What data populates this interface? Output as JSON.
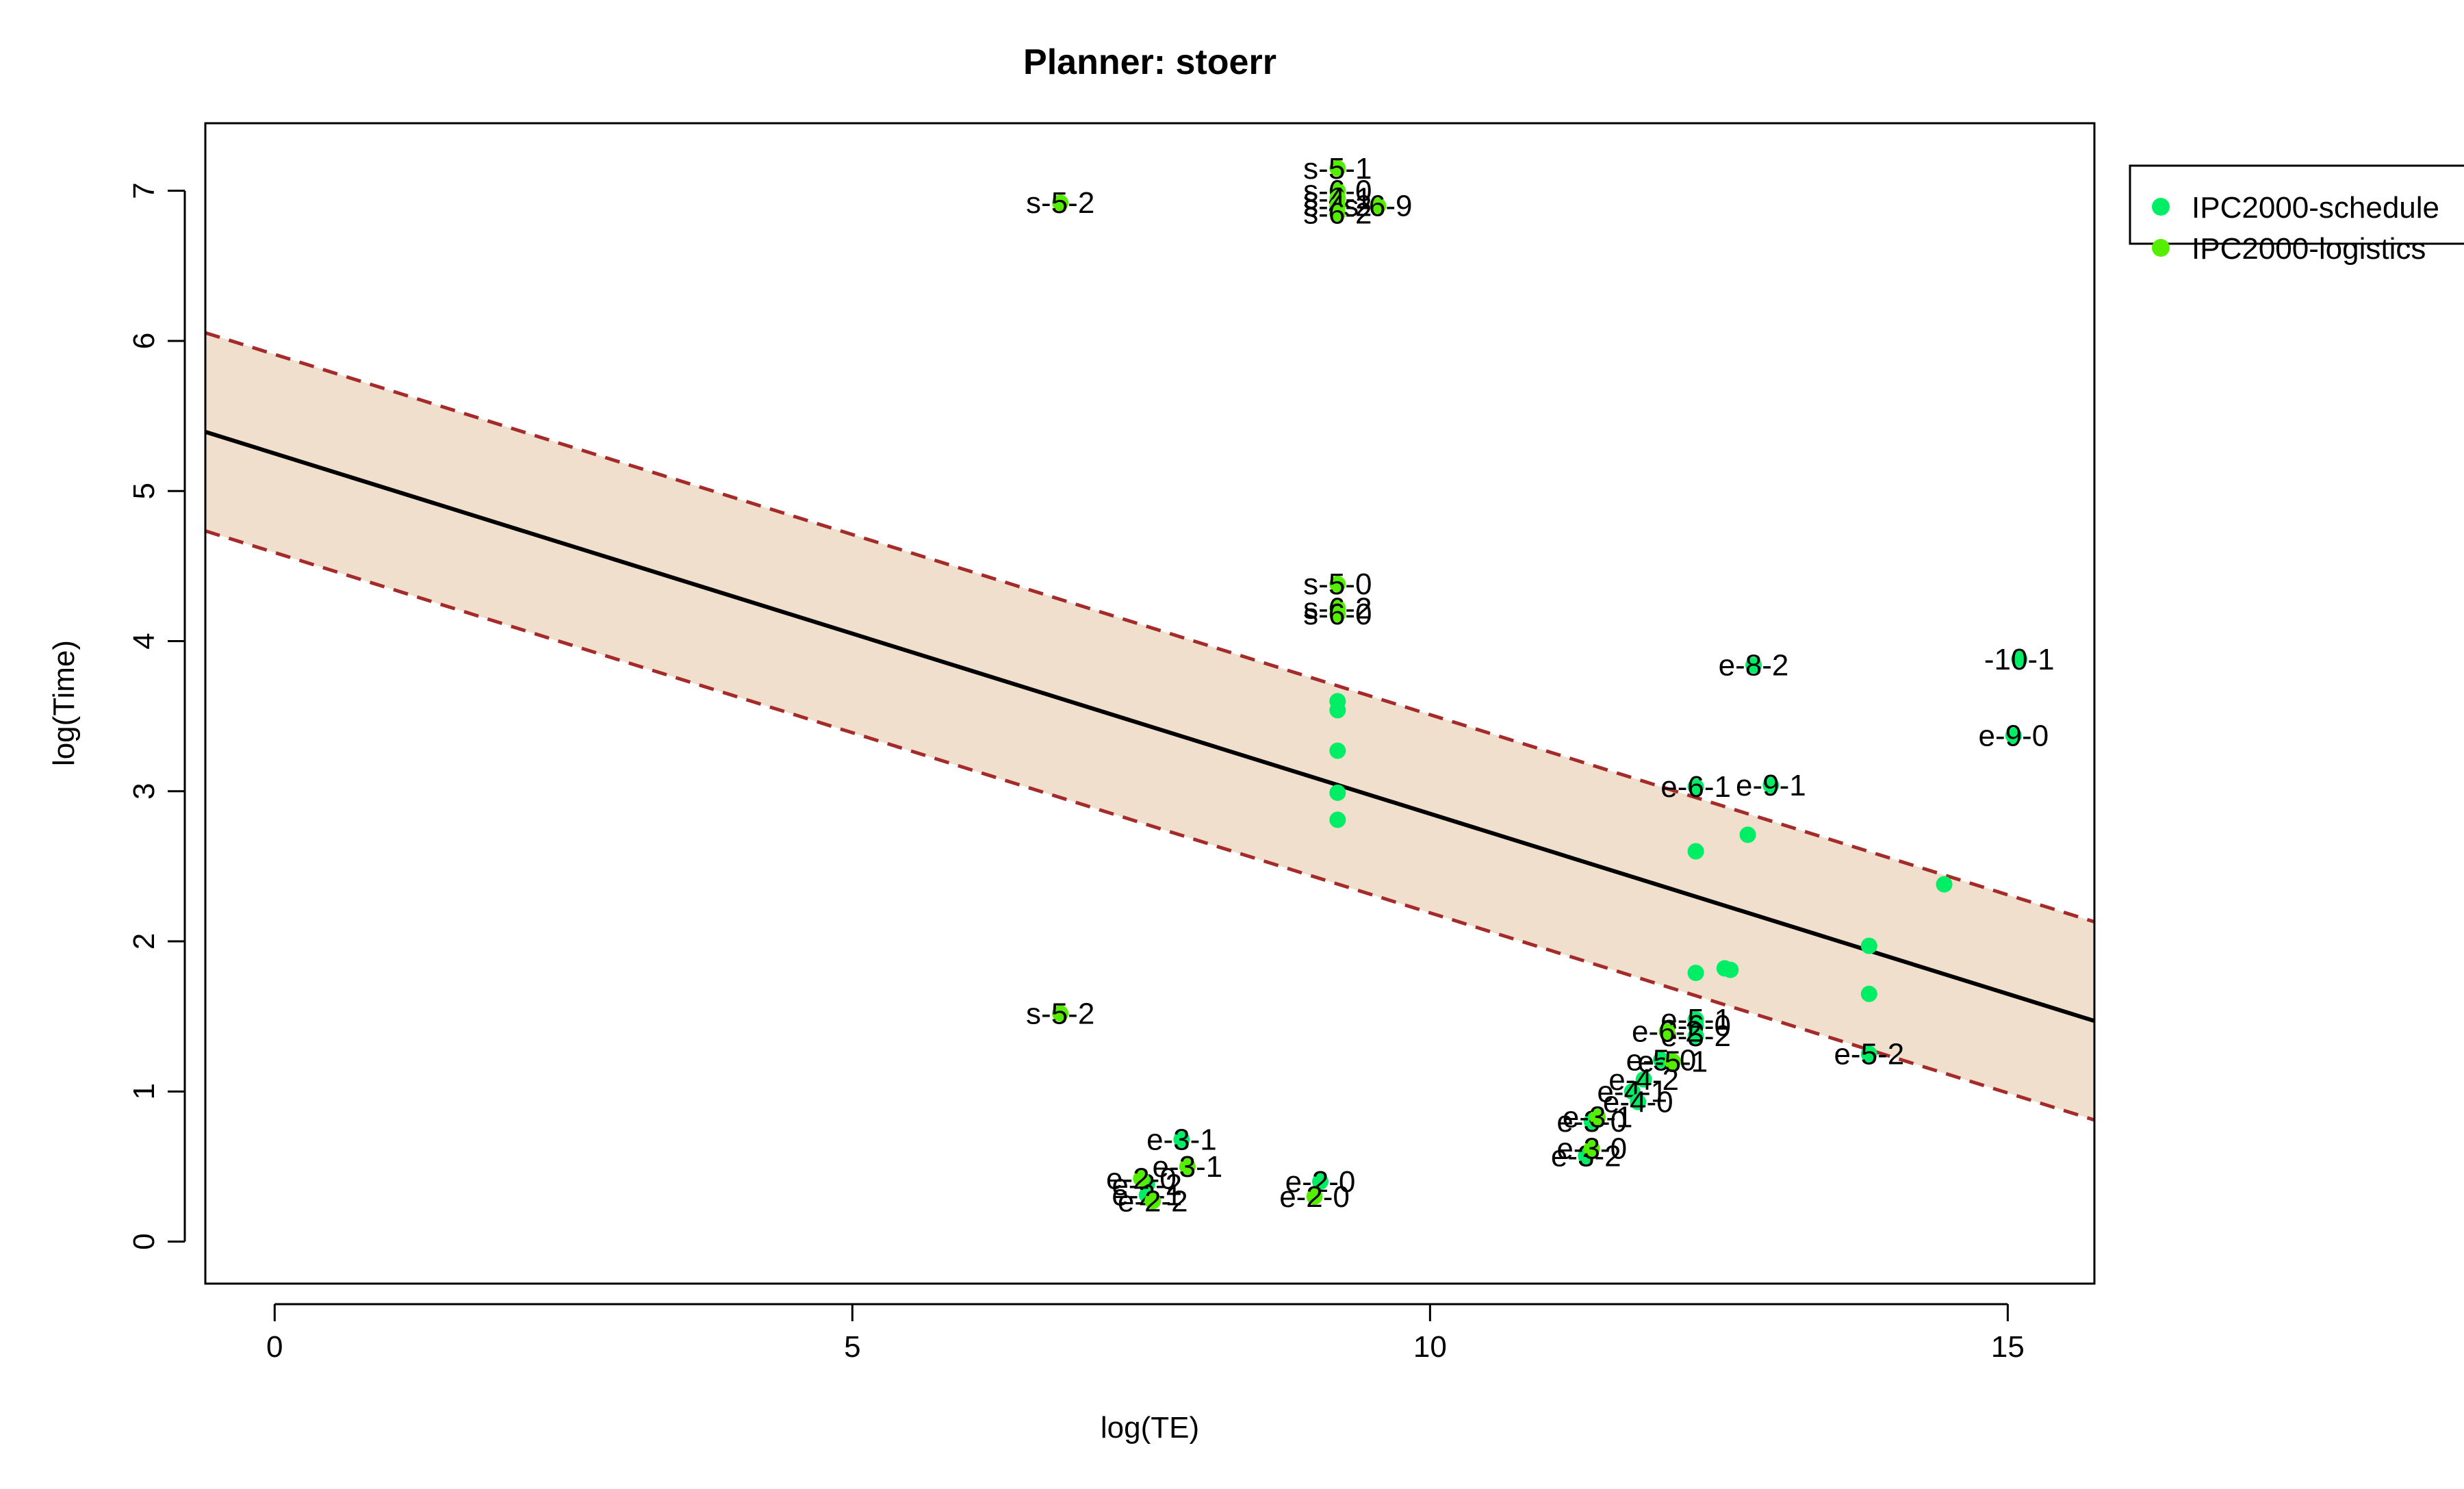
{
  "chart_data": {
    "type": "scatter",
    "title": "Planner: stoerr",
    "xlabel": "log(TE)",
    "ylabel": "log(Time)",
    "xlim": [
      -0.6,
      15.75
    ],
    "ylim": [
      -0.28,
      7.45
    ],
    "x_ticks": [
      0,
      5,
      10,
      15
    ],
    "y_ticks": [
      0,
      1,
      2,
      3,
      4,
      5,
      6,
      7
    ],
    "grid": false,
    "legend_position": "outside-top-right",
    "legend": [
      {
        "label": "IPC2000-schedule",
        "color": "#00ee66"
      },
      {
        "label": "IPC2000-logistics",
        "color": "#55ee00"
      }
    ],
    "colors": {
      "band_fill": "#efdfcc",
      "band_line": "#a52a2a",
      "fit_line": "#000000"
    },
    "regression": {
      "intercept": 5.25,
      "slope": -0.24,
      "band_offset_upper": 0.66,
      "band_offset_lower": -0.66
    },
    "series": [
      {
        "name": "IPC2000-schedule",
        "color": "#00ee66",
        "points": [
          {
            "x": 9.2,
            "y": 3.6,
            "label": ""
          },
          {
            "x": 9.2,
            "y": 3.54,
            "label": ""
          },
          {
            "x": 9.2,
            "y": 3.27,
            "label": ""
          },
          {
            "x": 9.2,
            "y": 2.99,
            "label": ""
          },
          {
            "x": 9.2,
            "y": 2.81,
            "label": ""
          },
          {
            "x": 12.3,
            "y": 2.6,
            "label": ""
          },
          {
            "x": 12.75,
            "y": 2.71,
            "label": ""
          },
          {
            "x": 14.45,
            "y": 2.38,
            "label": ""
          },
          {
            "x": 13.8,
            "y": 1.97,
            "label": ""
          },
          {
            "x": 13.8,
            "y": 1.65,
            "label": ""
          },
          {
            "x": 12.3,
            "y": 1.79,
            "label": ""
          },
          {
            "x": 12.55,
            "y": 1.82,
            "label": ""
          },
          {
            "x": 12.6,
            "y": 1.81,
            "label": ""
          },
          {
            "x": 15.1,
            "y": 3.88,
            "label": "-10-1"
          },
          {
            "x": 15.05,
            "y": 3.37,
            "label": "e-9-0"
          },
          {
            "x": 12.8,
            "y": 3.84,
            "label": "e-8-2"
          },
          {
            "x": 12.3,
            "y": 3.03,
            "label": "e-6-1"
          },
          {
            "x": 12.95,
            "y": 3.04,
            "label": "e-9-1"
          },
          {
            "x": 13.8,
            "y": 1.25,
            "label": "e-5-2"
          },
          {
            "x": 12.3,
            "y": 1.48,
            "label": "e-5-1"
          },
          {
            "x": 12.3,
            "y": 1.44,
            "label": "e-6-0"
          },
          {
            "x": 12.3,
            "y": 1.37,
            "label": "e-5-2"
          },
          {
            "x": 12.0,
            "y": 1.21,
            "label": "e-5-0"
          },
          {
            "x": 11.85,
            "y": 1.08,
            "label": "e-4-2"
          },
          {
            "x": 11.75,
            "y": 1.0,
            "label": "e-4-1"
          },
          {
            "x": 11.8,
            "y": 0.93,
            "label": "e-4-0"
          },
          {
            "x": 11.4,
            "y": 0.8,
            "label": "e-3-0"
          },
          {
            "x": 11.35,
            "y": 0.57,
            "label": "e-3-2"
          },
          {
            "x": 9.05,
            "y": 0.4,
            "label": "e-2-0"
          },
          {
            "x": 7.85,
            "y": 0.68,
            "label": "e-3-1"
          },
          {
            "x": 7.55,
            "y": 0.38,
            "label": "e-2-2"
          },
          {
            "x": 7.55,
            "y": 0.31,
            "label": "e-2-1"
          }
        ]
      },
      {
        "name": "IPC2000-logistics",
        "color": "#55ee00",
        "points": [
          {
            "x": 9.2,
            "y": 7.15,
            "label": "s-5-1"
          },
          {
            "x": 9.2,
            "y": 7.0,
            "label": "s-6-0"
          },
          {
            "x": 9.2,
            "y": 6.95,
            "label": "s-4-1"
          },
          {
            "x": 9.2,
            "y": 6.9,
            "label": "s-4-2"
          },
          {
            "x": 9.2,
            "y": 6.85,
            "label": "s-6-2"
          },
          {
            "x": 9.55,
            "y": 6.9,
            "label": "s-6-9"
          },
          {
            "x": 6.8,
            "y": 6.92,
            "label": "s-5-2"
          },
          {
            "x": 9.2,
            "y": 4.38,
            "label": "s-5-0"
          },
          {
            "x": 9.2,
            "y": 4.22,
            "label": "s-6-2"
          },
          {
            "x": 9.2,
            "y": 4.18,
            "label": "s-6-0"
          },
          {
            "x": 6.8,
            "y": 1.52,
            "label": "s-5-2"
          },
          {
            "x": 12.05,
            "y": 1.4,
            "label": "e-6-2"
          },
          {
            "x": 12.1,
            "y": 1.2,
            "label": "e-5-1"
          },
          {
            "x": 11.4,
            "y": 0.62,
            "label": "e-3-0"
          },
          {
            "x": 11.45,
            "y": 0.83,
            "label": "e-3-1"
          },
          {
            "x": 9.0,
            "y": 0.3,
            "label": "e-2-0"
          },
          {
            "x": 7.9,
            "y": 0.5,
            "label": "e-3-1"
          },
          {
            "x": 7.5,
            "y": 0.42,
            "label": "e-2-0"
          },
          {
            "x": 7.6,
            "y": 0.27,
            "label": "e-2-2"
          }
        ]
      }
    ]
  }
}
